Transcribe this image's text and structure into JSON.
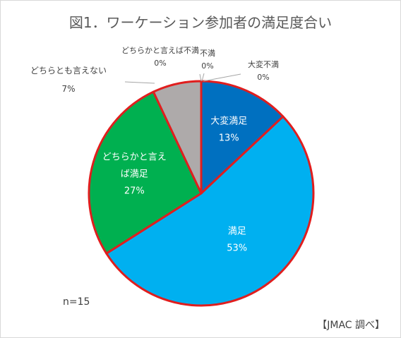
{
  "chart_data": {
    "type": "pie",
    "title": "図1．ワーケーション参加者の満足度合い",
    "start_angle_deg": 0,
    "direction": "clockwise",
    "slice_border_color": "#e01e1e",
    "slices": [
      {
        "label": "大変満足",
        "label_lines": [
          "大変満足"
        ],
        "value": 13,
        "display": "13%",
        "color": "#0070c0",
        "label_pos": "inside"
      },
      {
        "label": "満足",
        "label_lines": [
          "満足"
        ],
        "value": 53,
        "display": "53%",
        "color": "#00b0f0",
        "label_pos": "inside"
      },
      {
        "label": "どちらかと言えば満足",
        "label_lines": [
          "どちらかと言え",
          "ば満足"
        ],
        "value": 27,
        "display": "27%",
        "color": "#00b050",
        "label_pos": "inside"
      },
      {
        "label": "どちらとも言えない",
        "label_lines": [
          "どちらとも言えない"
        ],
        "value": 7,
        "display": "7%",
        "color": "#aeaaaa",
        "label_pos": "outside"
      },
      {
        "label": "どちらかと言えば不満",
        "label_lines": [
          "どちらかと言えば不満"
        ],
        "value": 0,
        "display": "0%",
        "color": "#7f7f7f",
        "label_pos": "outside"
      },
      {
        "label": "不満",
        "label_lines": [
          "不満"
        ],
        "value": 0,
        "display": "0%",
        "color": "#595959",
        "label_pos": "outside"
      },
      {
        "label": "大変不満",
        "label_lines": [
          "大変不満"
        ],
        "value": 0,
        "display": "0%",
        "color": "#404040",
        "label_pos": "outside"
      }
    ],
    "notes": {
      "sample_size": "n=15",
      "source": "【JMAC 調べ】"
    }
  }
}
